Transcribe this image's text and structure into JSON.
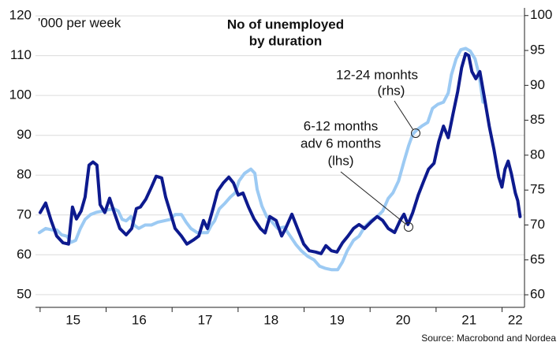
{
  "chart_data": {
    "type": "line",
    "title": [
      "No of unemployed",
      "by duration"
    ],
    "y_label": "'000 per week",
    "source": "Source: Macrobond and Nordea",
    "xlim": [
      2014.93,
      2022.34
    ],
    "xticks": [
      {
        "value": 2015.5,
        "label": "15"
      },
      {
        "value": 2016.5,
        "label": "16"
      },
      {
        "value": 2017.5,
        "label": "17"
      },
      {
        "value": 2018.5,
        "label": "18"
      },
      {
        "value": 2019.5,
        "label": "19"
      },
      {
        "value": 2020.5,
        "label": "20"
      },
      {
        "value": 2021.5,
        "label": "21"
      },
      {
        "value": 2022.2,
        "label": "22"
      }
    ],
    "xminorticks": [
      2015,
      2016,
      2017,
      2018,
      2019,
      2020,
      2021,
      2022
    ],
    "ylim": [
      46.8,
      122
    ],
    "yticks": [
      50,
      60,
      70,
      80,
      90,
      100,
      110,
      120
    ],
    "y2lim": [
      58.2,
      101.1
    ],
    "y2ticks": [
      60,
      65,
      70,
      75,
      80,
      85,
      90,
      95,
      100
    ],
    "grid": true,
    "annotations": [
      {
        "lines": [
          "12-24 monhts",
          "(rhs)"
        ]
      },
      {
        "lines": [
          "6-12 months",
          "adv 6 months",
          "(lhs)"
        ]
      }
    ],
    "series": [
      {
        "name": "12-24 monhts (rhs)",
        "color": "#9ccaf3",
        "axis": "y2",
        "x": [
          2014.988,
          2015.084,
          2015.179,
          2015.251,
          2015.323,
          2015.407,
          2015.467,
          2015.538,
          2015.61,
          2015.682,
          2015.766,
          2015.849,
          2015.945,
          2016.041,
          2016.124,
          2016.184,
          2016.244,
          2016.304,
          2016.376,
          2016.423,
          2016.495,
          2016.591,
          2016.687,
          2016.782,
          2016.878,
          2016.974,
          2017.045,
          2017.141,
          2017.213,
          2017.285,
          2017.38,
          2017.476,
          2017.536,
          2017.596,
          2017.644,
          2017.715,
          2017.799,
          2017.883,
          2017.955,
          2018.014,
          2018.098,
          2018.194,
          2018.254,
          2018.289,
          2018.361,
          2018.433,
          2018.517,
          2018.6,
          2018.696,
          2018.792,
          2018.876,
          2018.959,
          2019.055,
          2019.151,
          2019.234,
          2019.318,
          2019.414,
          2019.51,
          2019.581,
          2019.653,
          2019.749,
          2019.833,
          2019.916,
          2020.012,
          2020.108,
          2020.191,
          2020.275,
          2020.347,
          2020.431,
          2020.514,
          2020.586,
          2020.646,
          2020.706,
          2020.789,
          2020.873,
          2020.945,
          2021.029,
          2021.112,
          2021.184,
          2021.232,
          2021.304,
          2021.376,
          2021.447,
          2021.519,
          2021.591,
          2021.651,
          2021.711
        ],
        "values": [
          68.9,
          69.5,
          69.3,
          69.3,
          68.6,
          68.4,
          67.5,
          67.8,
          69.5,
          70.8,
          71.5,
          71.8,
          72,
          72.2,
          72.3,
          72,
          70.8,
          70.6,
          71.2,
          70,
          69.5,
          70,
          70,
          70.4,
          70.6,
          70.8,
          71.5,
          71.5,
          70.4,
          69.5,
          68.9,
          68.9,
          68.9,
          70,
          70.6,
          72.3,
          73.1,
          74,
          74.6,
          76.3,
          77.4,
          78,
          77.4,
          75.1,
          72.7,
          71.2,
          70.4,
          69.5,
          69.7,
          68.4,
          67.2,
          66.3,
          65.5,
          65,
          64.1,
          63.8,
          63.6,
          63.6,
          64.7,
          66.3,
          67.8,
          68.4,
          69.7,
          70.6,
          71.2,
          72,
          73.8,
          74.6,
          76.3,
          79.1,
          81.4,
          83,
          83.6,
          84.2,
          84.7,
          86.7,
          87.3,
          87.6,
          88.9,
          91.5,
          93.8,
          95.1,
          95.3,
          94.9,
          93.8,
          91.5,
          87.6
        ]
      },
      {
        "name": "6-12 months adv 6 months (lhs)",
        "color": "#0d1a8e",
        "axis": "y",
        "x": [
          2015,
          2015.084,
          2015.167,
          2015.251,
          2015.347,
          2015.431,
          2015.49,
          2015.55,
          2015.622,
          2015.682,
          2015.742,
          2015.801,
          2015.861,
          2015.909,
          2015.981,
          2016.053,
          2016.124,
          2016.208,
          2016.304,
          2016.388,
          2016.459,
          2016.519,
          2016.603,
          2016.687,
          2016.758,
          2016.842,
          2016.902,
          2016.974,
          2017.045,
          2017.141,
          2017.225,
          2017.321,
          2017.404,
          2017.476,
          2017.536,
          2017.62,
          2017.691,
          2017.775,
          2017.859,
          2017.931,
          2018.002,
          2018.074,
          2018.158,
          2018.242,
          2018.337,
          2018.409,
          2018.481,
          2018.577,
          2018.66,
          2018.72,
          2018.816,
          2018.9,
          2018.995,
          2019.079,
          2019.175,
          2019.258,
          2019.33,
          2019.414,
          2019.498,
          2019.581,
          2019.665,
          2019.749,
          2019.833,
          2019.916,
          2020.012,
          2020.108,
          2020.191,
          2020.275,
          2020.371,
          2020.455,
          2020.514,
          2020.574,
          2020.646,
          2020.73,
          2020.813,
          2020.885,
          2020.969,
          2021.041,
          2021.112,
          2021.184,
          2021.256,
          2021.328,
          2021.388,
          2021.447,
          2021.495,
          2021.543,
          2021.603,
          2021.663,
          2021.734,
          2021.806,
          2021.878,
          2021.95,
          2021.998,
          2022.045,
          2022.093,
          2022.141,
          2022.201,
          2022.237,
          2022.273
        ],
        "values": [
          70.6,
          73,
          68.6,
          64.7,
          63,
          62.7,
          72,
          69,
          71,
          74.5,
          82.5,
          83.3,
          82.5,
          72.6,
          70.6,
          74.2,
          70.6,
          66.6,
          65,
          66.6,
          71.6,
          72,
          74,
          77,
          79.7,
          79.3,
          74.5,
          70.6,
          66.6,
          64.7,
          62.7,
          63.7,
          64.7,
          68.6,
          66.6,
          71.6,
          76,
          78,
          79.5,
          78,
          75,
          75.5,
          72,
          69,
          66.6,
          65.5,
          69.6,
          68.6,
          64.7,
          66.6,
          70.2,
          66.6,
          62.7,
          61,
          60.7,
          60.3,
          62.3,
          61,
          60.7,
          63,
          64.7,
          66.6,
          67.6,
          66.6,
          68.2,
          69.6,
          68.6,
          66.6,
          65.6,
          68.6,
          70.2,
          67.6,
          70.6,
          75,
          78.5,
          81.5,
          83,
          88.4,
          92.3,
          89.4,
          95.3,
          101,
          107,
          110.5,
          110,
          106,
          104.2,
          106,
          99.3,
          92.3,
          86.4,
          79.5,
          77,
          81.5,
          83.5,
          80.4,
          75.5,
          73.6,
          69.6
        ]
      }
    ]
  }
}
